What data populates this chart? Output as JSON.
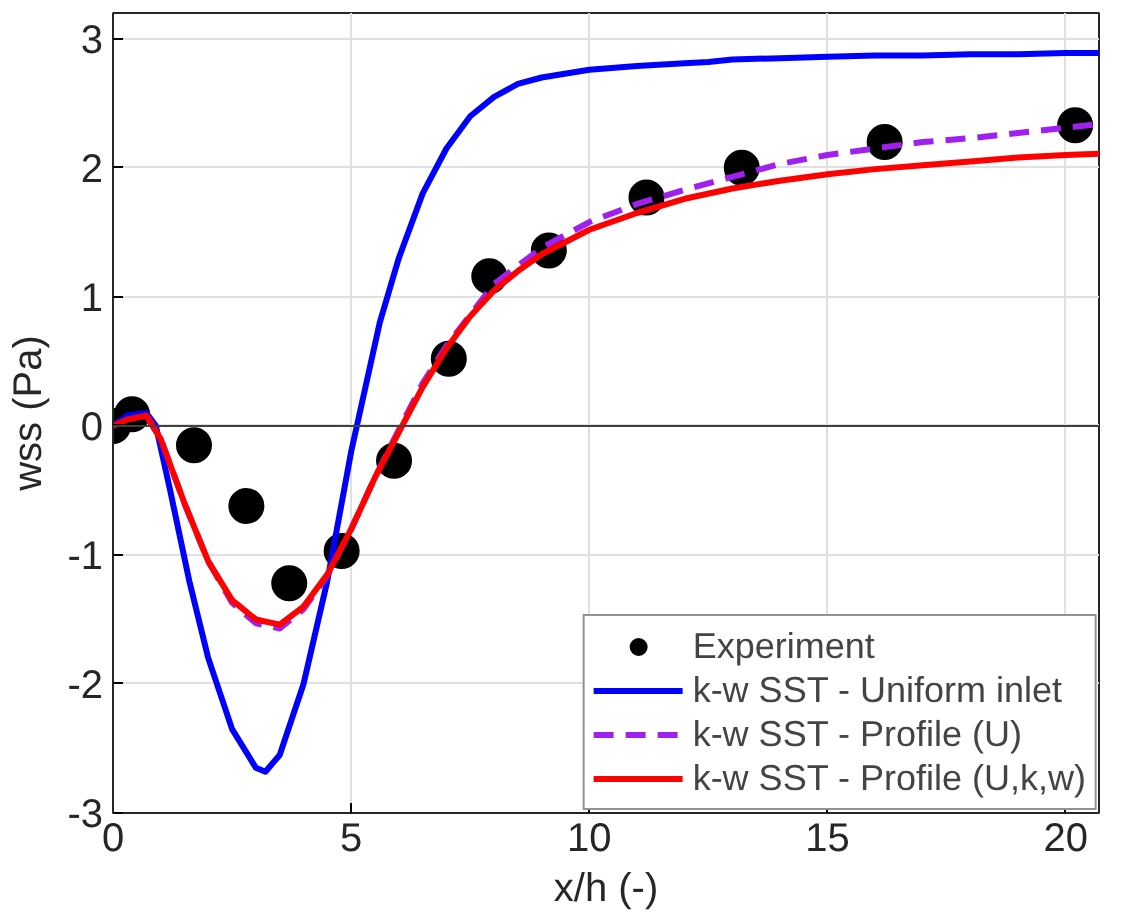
{
  "chart_data": {
    "type": "line",
    "xlabel": "x/h (-)",
    "ylabel": "wss (Pa)",
    "xlim": [
      0,
      20.7
    ],
    "ylim": [
      -3,
      3.2
    ],
    "xticks": [
      0,
      5,
      10,
      15,
      20
    ],
    "yticks": [
      -3,
      -2,
      -1,
      0,
      1,
      2,
      3
    ],
    "grid": true,
    "legend": "bottom right",
    "ref_lines": [
      {
        "axis": "y",
        "value": 0,
        "color": "#404040"
      }
    ],
    "series": [
      {
        "name": "Experiment",
        "type": "scatter",
        "marker": "circle",
        "color": "#000000",
        "x": [
          0,
          0.4,
          1.7,
          2.8,
          3.7,
          4.8,
          5.9,
          7.05,
          7.9,
          9.15,
          11.2,
          13.2,
          16.2,
          20.2
        ],
        "values": [
          0,
          0.09,
          -0.15,
          -0.62,
          -1.22,
          -0.97,
          -0.27,
          0.52,
          1.16,
          1.36,
          1.77,
          2.0,
          2.2,
          2.33
        ]
      },
      {
        "name": "k-w SST - Uniform inlet",
        "type": "line",
        "line_style": "solid",
        "color": "#0000ff",
        "x": [
          0,
          0.3,
          0.7,
          0.9,
          1.2,
          1.6,
          2.0,
          2.5,
          3.0,
          3.2,
          3.5,
          4.0,
          4.5,
          5.0,
          5.3,
          5.6,
          6.0,
          6.5,
          7.0,
          7.5,
          8.0,
          8.5,
          9,
          10,
          11,
          12,
          12.5,
          13,
          14,
          15,
          16,
          17,
          18,
          19,
          20,
          20.7
        ],
        "values": [
          0,
          0.08,
          0.1,
          0.0,
          -0.5,
          -1.2,
          -1.8,
          -2.35,
          -2.65,
          -2.68,
          -2.55,
          -2.0,
          -1.2,
          -0.2,
          0.3,
          0.8,
          1.3,
          1.8,
          2.15,
          2.4,
          2.55,
          2.65,
          2.7,
          2.76,
          2.79,
          2.81,
          2.82,
          2.84,
          2.85,
          2.86,
          2.87,
          2.87,
          2.88,
          2.88,
          2.89,
          2.89
        ]
      },
      {
        "name": "k-w SST - Profile (U)",
        "type": "line",
        "line_style": "dashed",
        "color": "#a020f0",
        "x": [
          0.7,
          1.0,
          1.5,
          2.0,
          2.5,
          3.0,
          3.5,
          4.0,
          4.5,
          5.0,
          5.5,
          6.0,
          6.5,
          7,
          8,
          9,
          10,
          11,
          12,
          13,
          14,
          15,
          16,
          17,
          18,
          19,
          20,
          20.7
        ],
        "values": [
          0.08,
          -0.1,
          -0.6,
          -1.05,
          -1.37,
          -1.53,
          -1.57,
          -1.42,
          -1.16,
          -0.8,
          -0.4,
          -0.03,
          0.33,
          0.62,
          1.1,
          1.38,
          1.58,
          1.72,
          1.83,
          1.93,
          2.03,
          2.1,
          2.15,
          2.2,
          2.23,
          2.27,
          2.31,
          2.34
        ]
      },
      {
        "name": "k-w SST - Profile (U,k,w)",
        "type": "line",
        "line_style": "solid",
        "color": "#ff0000",
        "x": [
          0,
          0.3,
          0.7,
          1.0,
          1.5,
          2.0,
          2.5,
          3.0,
          3.5,
          4.0,
          4.5,
          5.0,
          5.5,
          6.0,
          6.5,
          7.0,
          7.5,
          8,
          8.5,
          9,
          10,
          11,
          12,
          13,
          14,
          15,
          16,
          17,
          18,
          19,
          20,
          20.7
        ],
        "values": [
          0,
          0.05,
          0.08,
          -0.1,
          -0.6,
          -1.05,
          -1.35,
          -1.5,
          -1.54,
          -1.4,
          -1.15,
          -0.8,
          -0.4,
          -0.05,
          0.3,
          0.6,
          0.85,
          1.05,
          1.2,
          1.33,
          1.52,
          1.65,
          1.76,
          1.84,
          1.9,
          1.95,
          1.99,
          2.02,
          2.05,
          2.08,
          2.1,
          2.11
        ]
      }
    ]
  }
}
